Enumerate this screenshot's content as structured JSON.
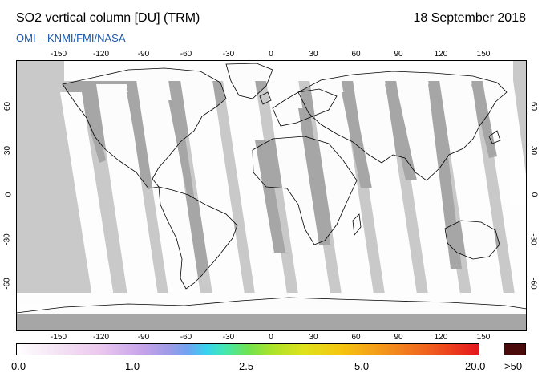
{
  "header": {
    "title": "SO2 vertical column [DU] (TRM)",
    "date": "18 September 2018",
    "credit": "OMI  –  KNMI/FMI/NASA"
  },
  "map": {
    "projection": "equirectangular",
    "lon_ticks": [
      "-150",
      "-120",
      "-90",
      "-60",
      "-30",
      "0",
      "30",
      "60",
      "90",
      "120",
      "150"
    ],
    "lat_ticks": [
      "60",
      "30",
      "0",
      "-30",
      "-60"
    ],
    "colors": {
      "ocean_no_data": "#c9c9c9",
      "land_no_data": "#a6a6a6",
      "swath": "#ffffff",
      "coastline": "#000000"
    }
  },
  "colorbar": {
    "labels": [
      "0.0",
      "1.0",
      "2.5",
      "5.0",
      "20.0",
      ">50"
    ],
    "overflow_color": "#4a0a0a"
  }
}
